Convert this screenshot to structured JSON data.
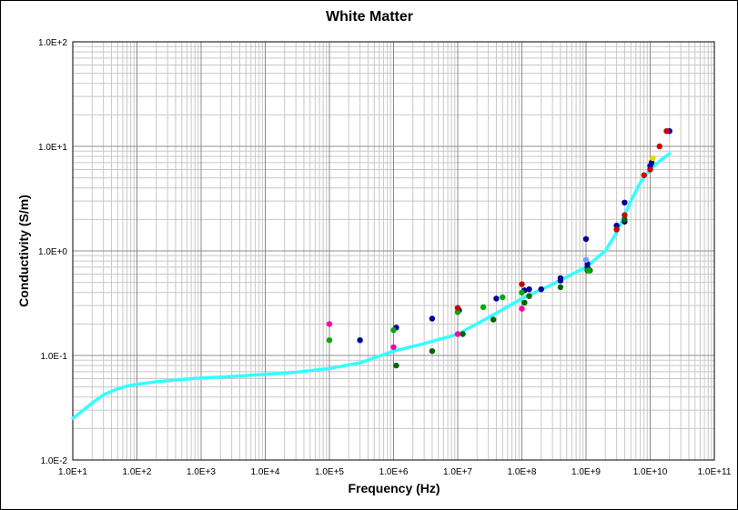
{
  "chart_data": {
    "type": "scatter",
    "title": "White Matter",
    "xlabel": "Frequency (Hz)",
    "ylabel": "Conductivity (S/m)",
    "x_scale": "log",
    "y_scale": "log",
    "xlim": [
      10,
      100000000000
    ],
    "ylim": [
      0.01,
      100
    ],
    "x_tick_labels": [
      "1.0E+1",
      "1.0E+2",
      "1.0E+3",
      "1.0E+4",
      "1.0E+5",
      "1.0E+6",
      "1.0E+7",
      "1.0E+8",
      "1.0E+9",
      "1.0E+10",
      "1.0E+11"
    ],
    "y_tick_labels": [
      "1.0E-2",
      "1.0E-1",
      "1.0E+0",
      "1.0E+1",
      "1.0E+2"
    ],
    "grid": true,
    "legend": "none",
    "colors": {
      "curve": "#33ffff",
      "navy": "#000099",
      "darkgreen": "#006600",
      "green": "#00aa00",
      "magenta": "#ff00aa",
      "red": "#cc0000",
      "yellow": "#dddd00",
      "lightblue": "#7799ff"
    },
    "curve": {
      "x": [
        10,
        20,
        30,
        50,
        70,
        100,
        200,
        500,
        1000,
        3000,
        10000,
        30000,
        100000,
        300000,
        1000000,
        3000000,
        10000000,
        30000000,
        100000000,
        300000000,
        1000000000,
        2000000000,
        3000000000,
        5000000000,
        7000000000,
        10000000000,
        15000000000,
        20000000000
      ],
      "y": [
        0.025,
        0.035,
        0.042,
        0.048,
        0.051,
        0.053,
        0.056,
        0.059,
        0.061,
        0.063,
        0.066,
        0.069,
        0.075,
        0.085,
        0.11,
        0.13,
        0.16,
        0.23,
        0.35,
        0.48,
        0.7,
        1.0,
        1.5,
        3.0,
        4.5,
        6.0,
        7.5,
        8.5
      ]
    },
    "series": [
      {
        "color": "navy",
        "points": [
          [
            300000,
            0.14
          ],
          [
            1100000,
            0.185
          ],
          [
            4000000,
            0.225
          ],
          [
            10500000,
            0.27
          ],
          [
            40000000,
            0.35
          ],
          [
            110000000,
            0.42
          ],
          [
            130000000,
            0.43
          ],
          [
            200000000,
            0.43
          ],
          [
            400000000,
            0.55
          ],
          [
            400000000,
            0.52
          ],
          [
            1000000000,
            1.3
          ],
          [
            1050000000,
            0.75
          ],
          [
            1050000000,
            0.7
          ],
          [
            3000000000,
            1.75
          ],
          [
            4000000000,
            2.9
          ],
          [
            4000000000,
            1.9
          ],
          [
            10000000000,
            6.5
          ],
          [
            10500000000,
            7.0
          ],
          [
            20000000000,
            14
          ]
        ]
      },
      {
        "color": "darkgreen",
        "points": [
          [
            1100000,
            0.08
          ],
          [
            4000000,
            0.11
          ],
          [
            12000000,
            0.16
          ],
          [
            36000000,
            0.22
          ],
          [
            110000000,
            0.32
          ],
          [
            130000000,
            0.37
          ],
          [
            400000000,
            0.45
          ],
          [
            1050000000,
            0.65
          ],
          [
            1150000000,
            0.65
          ],
          [
            4000000000,
            2.0
          ]
        ]
      },
      {
        "color": "green",
        "points": [
          [
            100000,
            0.14
          ],
          [
            1000000,
            0.175
          ],
          [
            10000000,
            0.26
          ],
          [
            25000000,
            0.29
          ],
          [
            50000000,
            0.36
          ],
          [
            100000000,
            0.4
          ],
          [
            1100000000,
            0.65
          ]
        ]
      },
      {
        "color": "magenta",
        "points": [
          [
            100000,
            0.2
          ],
          [
            1000000,
            0.12
          ],
          [
            10000000,
            0.16
          ],
          [
            100000000,
            0.28
          ]
        ]
      },
      {
        "color": "red",
        "points": [
          [
            10000000,
            0.285
          ],
          [
            100000000,
            0.48
          ],
          [
            3000000000,
            1.6
          ],
          [
            4000000000,
            2.2
          ],
          [
            8000000000,
            5.3
          ],
          [
            10000000000,
            6.0
          ],
          [
            14000000000,
            10
          ],
          [
            18000000000,
            14
          ]
        ]
      },
      {
        "color": "yellow",
        "points": [
          [
            11000000000,
            7.7
          ]
        ]
      },
      {
        "color": "lightblue",
        "points": [
          [
            1000000000,
            0.82
          ]
        ]
      }
    ]
  }
}
